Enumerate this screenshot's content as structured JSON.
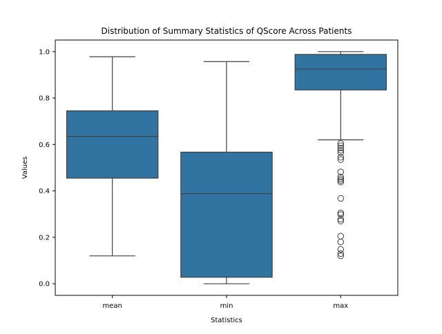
{
  "chart_data": {
    "type": "box",
    "title": "Distribution of Summary Statistics of QScore Across Patients",
    "xlabel": "Statistics",
    "ylabel": "Values",
    "ylim": [
      -0.05,
      1.05
    ],
    "yticks": [
      0.0,
      0.2,
      0.4,
      0.6,
      0.8,
      1.0
    ],
    "ytick_labels": [
      "0.0",
      "0.2",
      "0.4",
      "0.6",
      "0.8",
      "1.0"
    ],
    "categories": [
      "mean",
      "min",
      "max"
    ],
    "grid": false,
    "color": "#3274a1",
    "edge_color": "#3f3f3f",
    "boxes": [
      {
        "category": "mean",
        "whisker_low": 0.12,
        "q1": 0.455,
        "median": 0.635,
        "q3": 0.745,
        "whisker_high": 0.978,
        "outliers": []
      },
      {
        "category": "min",
        "whisker_low": 0.0,
        "q1": 0.028,
        "median": 0.388,
        "q3": 0.567,
        "whisker_high": 0.957,
        "outliers": []
      },
      {
        "category": "max",
        "whisker_low": 0.62,
        "q1": 0.835,
        "median": 0.925,
        "q3": 0.988,
        "whisker_high": 1.0,
        "outliers": [
          0.605,
          0.595,
          0.585,
          0.575,
          0.565,
          0.545,
          0.535,
          0.482,
          0.46,
          0.452,
          0.445,
          0.438,
          0.368,
          0.305,
          0.298,
          0.278,
          0.27,
          0.205,
          0.18,
          0.148,
          0.13,
          0.12
        ]
      }
    ]
  }
}
